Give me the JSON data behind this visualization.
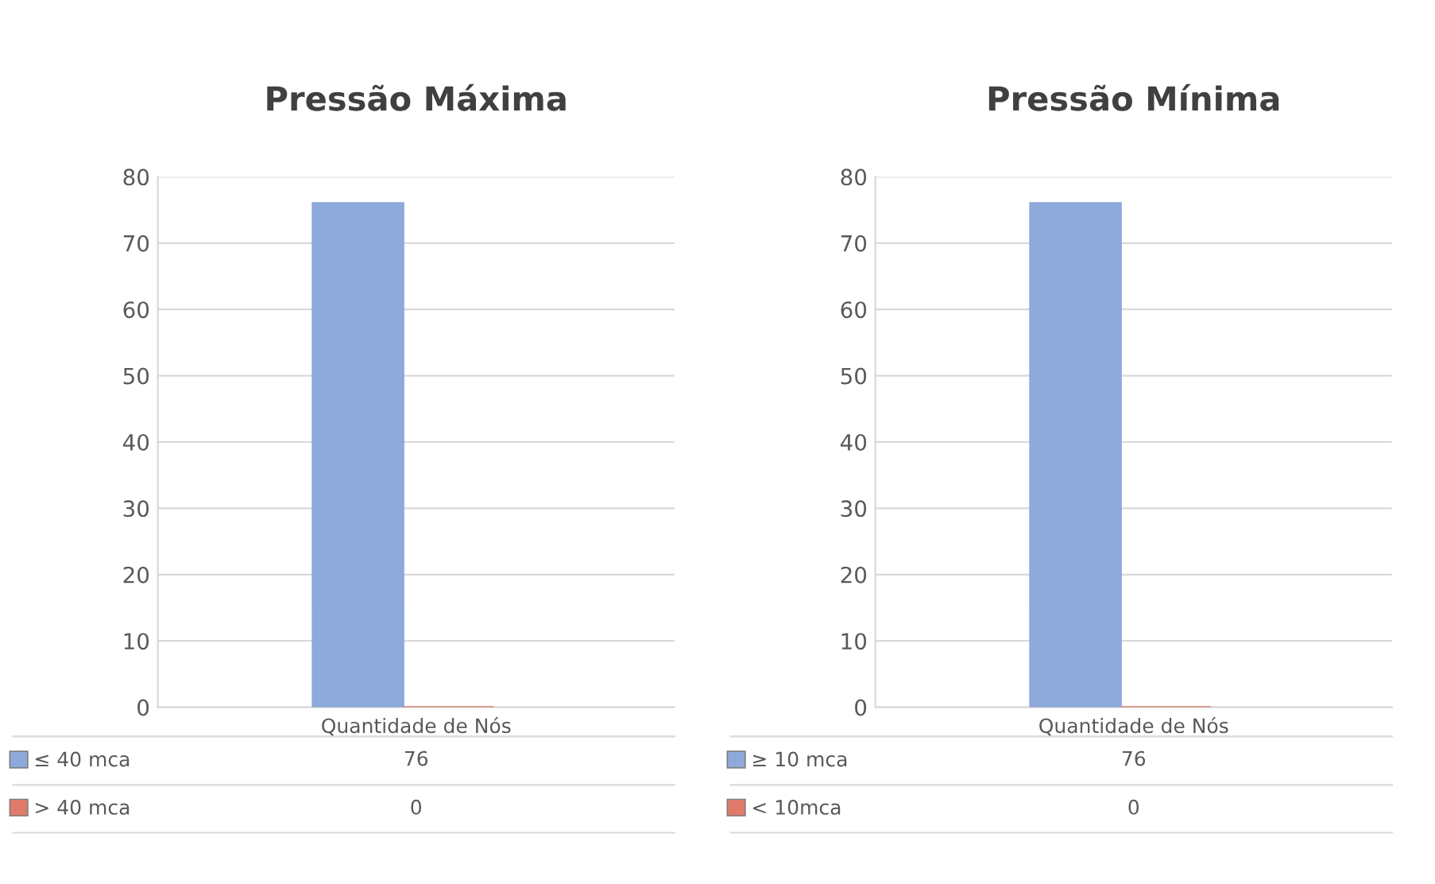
{
  "chart_data": [
    {
      "type": "bar",
      "title": "Pressão Máxima",
      "categories": [
        "Quantidade de Nós"
      ],
      "series": [
        {
          "name": "≤ 40 mca",
          "color": "#8eaadb",
          "values": [
            76
          ]
        },
        {
          "name": "> 40 mca",
          "color": "#e07a6a",
          "values": [
            0
          ]
        }
      ],
      "ylim": [
        0,
        80
      ],
      "yticks": [
        0,
        10,
        20,
        30,
        40,
        50,
        60,
        70,
        80
      ],
      "grid": "y",
      "legend": "bottom",
      "annotations": [
        "76",
        "0"
      ]
    },
    {
      "type": "bar",
      "title": "Pressão Mínima",
      "categories": [
        "Quantidade de Nós"
      ],
      "series": [
        {
          "name": "≥ 10 mca",
          "color": "#8eaadb",
          "values": [
            76
          ]
        },
        {
          "name": "< 10mca",
          "color": "#e07a6a",
          "values": [
            0
          ]
        }
      ],
      "ylim": [
        0,
        80
      ],
      "yticks": [
        0,
        10,
        20,
        30,
        40,
        50,
        60,
        70,
        80
      ],
      "grid": "y",
      "legend": "bottom",
      "annotations": [
        "76",
        "0"
      ]
    }
  ]
}
